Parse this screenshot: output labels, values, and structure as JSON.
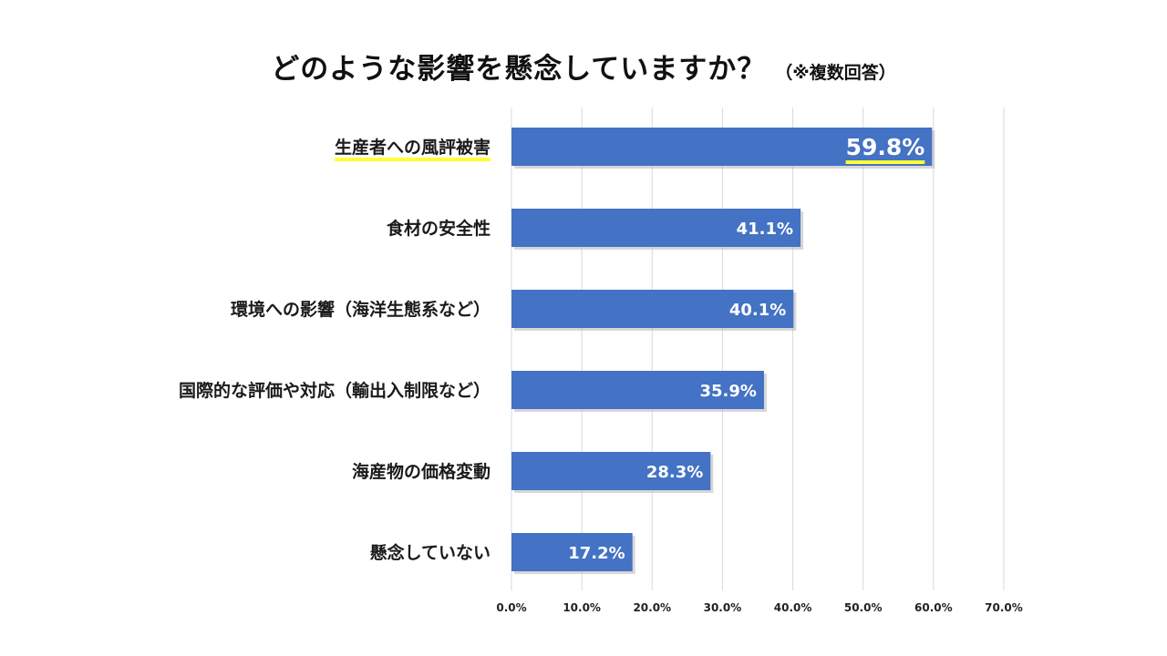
{
  "title": {
    "main": "どのような影響を懸念していますか？",
    "sub": "（※複数回答）"
  },
  "chart_data": {
    "type": "bar",
    "orientation": "horizontal",
    "title": "どのような影響を懸念していますか？（※複数回答）",
    "categories": [
      "生産者への風評被害",
      "食材の安全性",
      "環境への影響（海洋生態系など）",
      "国際的な評価や対応（輸出入制限など）",
      "海産物の価格変動",
      "懸念していない"
    ],
    "values": [
      59.8,
      41.1,
      40.1,
      35.9,
      28.3,
      17.2
    ],
    "value_labels": [
      "59.8%",
      "41.1%",
      "40.1%",
      "35.9%",
      "28.3%",
      "17.2%"
    ],
    "xlim": [
      0,
      70
    ],
    "xticks": [
      0,
      10,
      20,
      30,
      40,
      50,
      60,
      70
    ],
    "xtick_labels": [
      "0.0%",
      "10.0%",
      "20.0%",
      "30.0%",
      "40.0%",
      "50.0%",
      "60.0%",
      "70.0%"
    ],
    "grid": true,
    "highlight_index": 0,
    "colors": {
      "bar": "#4472C4",
      "bar_shadow": "#b7b7b7",
      "grid": "#d9d9d9",
      "highlight": "#ffff33"
    }
  }
}
